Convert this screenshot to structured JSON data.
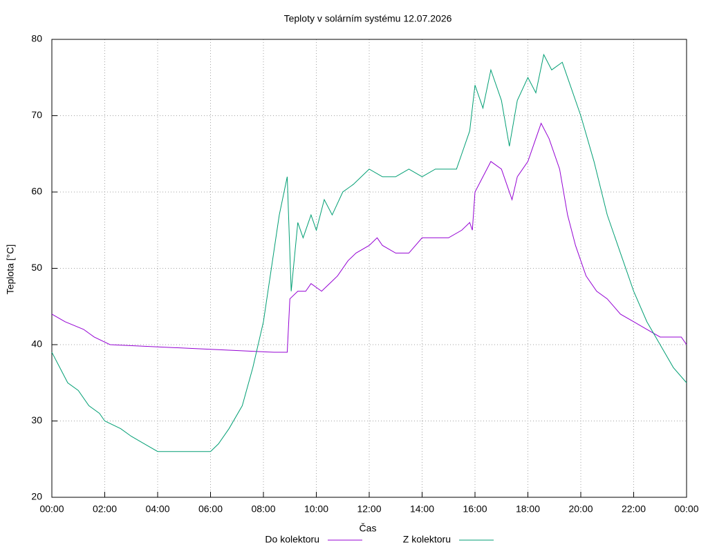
{
  "chart_data": {
    "type": "line",
    "title": "Teploty v solárním systému 12.07.2026",
    "x_label": "Čas",
    "y_label": "Teplota [°C]",
    "xlim": [
      0,
      24
    ],
    "xticks": [
      {
        "value": 0,
        "label": "00:00"
      },
      {
        "value": 2,
        "label": "02:00"
      },
      {
        "value": 4,
        "label": "04:00"
      },
      {
        "value": 6,
        "label": "06:00"
      },
      {
        "value": 8,
        "label": "08:00"
      },
      {
        "value": 10,
        "label": "10:00"
      },
      {
        "value": 12,
        "label": "12:00"
      },
      {
        "value": 14,
        "label": "14:00"
      },
      {
        "value": 16,
        "label": "16:00"
      },
      {
        "value": 18,
        "label": "18:00"
      },
      {
        "value": 20,
        "label": "20:00"
      },
      {
        "value": 22,
        "label": "22:00"
      },
      {
        "value": 24,
        "label": "00:00"
      }
    ],
    "ylim": [
      20,
      80
    ],
    "yticks": [
      20,
      30,
      40,
      50,
      60,
      70,
      80
    ],
    "grid": true,
    "legend": "bottom",
    "series": [
      {
        "name": "Do kolektoru",
        "color": "#9400d3",
        "x": [
          0,
          0.5,
          1.2,
          1.6,
          2.2,
          8.4,
          8.9,
          9.0,
          9.3,
          9.6,
          9.8,
          10.2,
          10.5,
          10.8,
          11.2,
          11.5,
          12,
          12.3,
          12.5,
          13,
          13.5,
          14,
          15,
          15.5,
          15.8,
          15.9,
          16,
          16.3,
          16.6,
          17,
          17.2,
          17.4,
          17.6,
          18,
          18.2,
          18.5,
          18.8,
          19.2,
          19.5,
          19.8,
          20.2,
          20.6,
          21,
          21.5,
          22,
          22.5,
          23,
          23.8,
          24
        ],
        "values": [
          44,
          43,
          42,
          41,
          40,
          39,
          39,
          46,
          47,
          47,
          48,
          47,
          48,
          49,
          51,
          52,
          53,
          54,
          53,
          52,
          52,
          54,
          54,
          55,
          56,
          55,
          60,
          62,
          64,
          63,
          61,
          59,
          62,
          64,
          66,
          69,
          67,
          63,
          57,
          53,
          49,
          47,
          46,
          44,
          43,
          42,
          41,
          41,
          40
        ]
      },
      {
        "name": "Z kolektoru",
        "color": "#009e73",
        "x": [
          0,
          0.3,
          0.6,
          1,
          1.4,
          1.8,
          2,
          2.6,
          3,
          3.5,
          4,
          5,
          6,
          6.3,
          6.7,
          7.2,
          7.6,
          8,
          8.3,
          8.6,
          8.9,
          9.05,
          9.3,
          9.5,
          9.8,
          10,
          10.3,
          10.6,
          11,
          11.4,
          12,
          12.5,
          13,
          13.5,
          14,
          14.5,
          15,
          15.3,
          15.5,
          15.8,
          16,
          16.3,
          16.6,
          17,
          17.3,
          17.6,
          18,
          18.3,
          18.6,
          18.9,
          19.3,
          19.6,
          20,
          20.5,
          21,
          21.5,
          22,
          22.5,
          23,
          23.5,
          24
        ],
        "values": [
          39,
          37,
          35,
          34,
          32,
          31,
          30,
          29,
          28,
          27,
          26,
          26,
          26,
          27,
          29,
          32,
          37,
          43,
          50,
          57,
          62,
          47,
          56,
          54,
          57,
          55,
          59,
          57,
          60,
          61,
          63,
          62,
          62,
          63,
          62,
          63,
          63,
          63,
          65,
          68,
          74,
          71,
          76,
          72,
          66,
          72,
          75,
          73,
          78,
          76,
          77,
          74,
          70,
          64,
          57,
          52,
          47,
          43,
          40,
          37,
          35
        ]
      }
    ]
  }
}
